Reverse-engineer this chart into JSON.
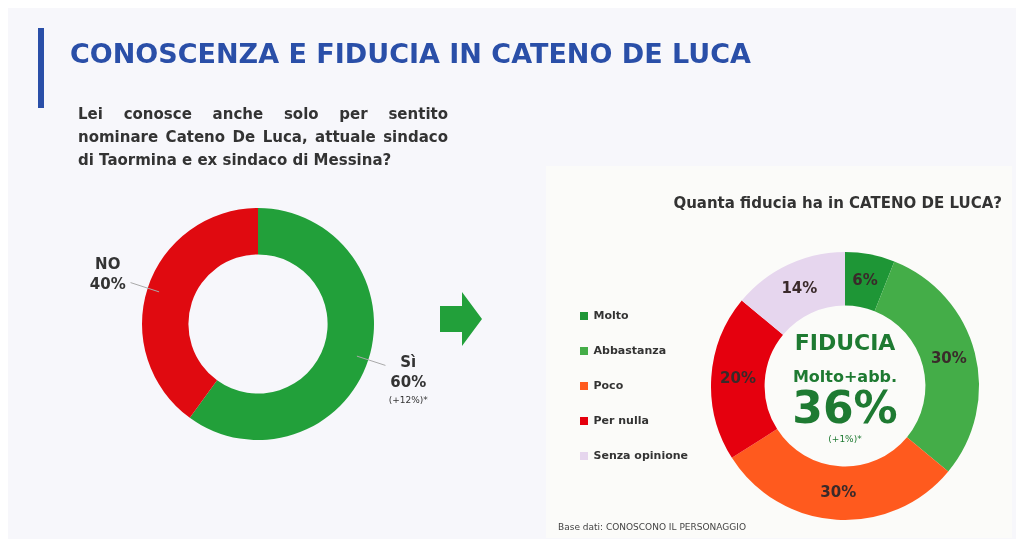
{
  "chart_data": [
    {
      "type": "donut",
      "title": "CONOSCENZA E FIDUCIA IN CATENO DE LUCA",
      "subtitle": "Lei conosce anche solo per sentito nominare Cateno De Luca, attuale sindaco di Taormina e ex sindaco di Messina?",
      "categories": [
        "Sì",
        "NO"
      ],
      "values": [
        60,
        40
      ],
      "colors": [
        "#22a03a",
        "#e00a10"
      ],
      "value_labels": [
        "60%",
        "40%"
      ],
      "legend": false,
      "annotations": [
        {
          "text": "(+12%)*",
          "x": "Sì"
        }
      ]
    },
    {
      "type": "donut",
      "title": "Quanta fiducia ha in CATENO DE LUCA?",
      "categories": [
        "Molto",
        "Abbastanza",
        "Poco",
        "Per nulla",
        "Senza opinione"
      ],
      "values": [
        6,
        30,
        30,
        20,
        14
      ],
      "colors": [
        "#1e9636",
        "#44ad48",
        "#ff5a1e",
        "#e5000e",
        "#e6d6ee"
      ],
      "value_labels": [
        "6%",
        "30%",
        "30%",
        "20%",
        "14%"
      ],
      "legend": "left",
      "annotations": [
        "FIDUCIA",
        "Molto+abb.",
        "36%",
        "(+1%)*",
        "Base dati: CONOSCONO IL PERSONAGGIO"
      ]
    }
  ]
}
